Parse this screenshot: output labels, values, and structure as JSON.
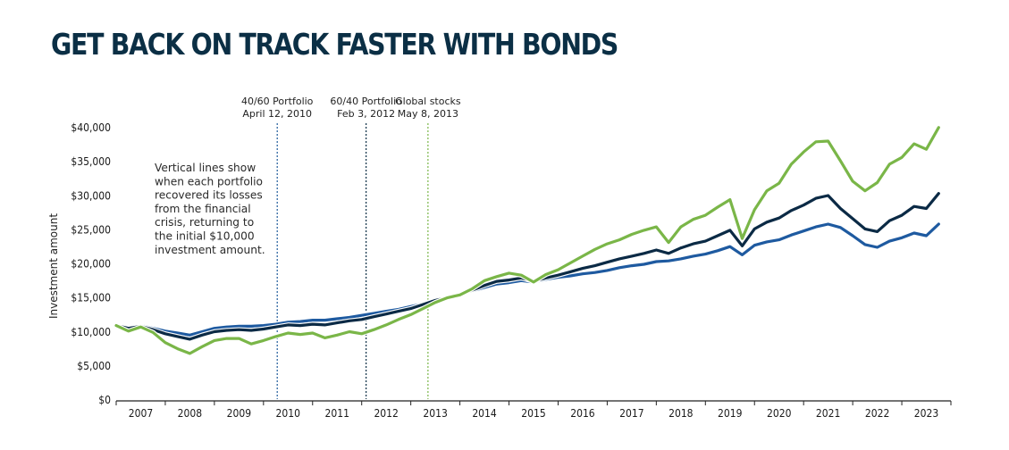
{
  "chart_data": {
    "type": "line",
    "title": "GET BACK ON TRACK FASTER WITH BONDS",
    "xlabel": "",
    "ylabel": "Investment amount",
    "ylim": [
      0,
      40000
    ],
    "xlim": [
      2007.0,
      2024.0
    ],
    "y_ticks": [
      0,
      5000,
      10000,
      15000,
      20000,
      25000,
      30000,
      35000,
      40000
    ],
    "y_tick_labels": [
      "$0",
      "$5,000",
      "$10,000",
      "$15,000",
      "$20,000",
      "$25,000",
      "$30,000",
      "$35,000",
      "$40,000"
    ],
    "x_tick_labels": [
      "2007",
      "2008",
      "2009",
      "2010",
      "2011",
      "2012",
      "2013",
      "2014",
      "2015",
      "2016",
      "2017",
      "2018",
      "2019",
      "2020",
      "2021",
      "2022",
      "2023"
    ],
    "grid": false,
    "legend": "none",
    "note": "Vertical lines show when each portfolio recovered its losses from the financial crisis, returning to the initial $10,000 investment amount.",
    "note_lines": [
      "Vertical lines show",
      "when each portfolio",
      "recovered its losses",
      "from the financial",
      "crisis, returning to",
      "the initial $10,000",
      "investment amount."
    ],
    "markers": [
      {
        "label_line1": "40/60 Portfolio",
        "label_line2": "April 12, 2010",
        "x": 2010.28,
        "color": "#1f5a9a"
      },
      {
        "label_line1": "60/40 Portfolio",
        "label_line2": "Feb 3, 2012",
        "x": 2012.09,
        "color": "#0b2f45"
      },
      {
        "label_line1": "Global stocks",
        "label_line2": "May 8, 2013",
        "x": 2013.35,
        "color": "#7ab648"
      }
    ],
    "series": [
      {
        "name": "40/60 Portfolio",
        "color": "#1e5aa0",
        "x": [
          2007.0,
          2007.25,
          2007.5,
          2007.75,
          2008.0,
          2008.25,
          2008.5,
          2008.75,
          2009.0,
          2009.25,
          2009.5,
          2009.75,
          2010.0,
          2010.25,
          2010.5,
          2010.75,
          2011.0,
          2011.25,
          2011.5,
          2011.75,
          2012.0,
          2012.25,
          2012.5,
          2012.75,
          2013.0,
          2013.25,
          2013.5,
          2013.75,
          2014.0,
          2014.25,
          2014.5,
          2014.75,
          2015.0,
          2015.25,
          2015.5,
          2015.75,
          2016.0,
          2016.25,
          2016.5,
          2016.75,
          2017.0,
          2017.25,
          2017.5,
          2017.75,
          2018.0,
          2018.25,
          2018.5,
          2018.75,
          2019.0,
          2019.25,
          2019.5,
          2019.75,
          2020.0,
          2020.25,
          2020.5,
          2020.75,
          2021.0,
          2021.25,
          2021.5,
          2021.75,
          2022.0,
          2022.25,
          2022.5,
          2022.75,
          2023.0,
          2023.25,
          2023.5,
          2023.75
        ],
        "values": [
          10800,
          10500,
          10800,
          10400,
          10000,
          9700,
          9400,
          9900,
          10400,
          10600,
          10700,
          10700,
          10800,
          11000,
          11300,
          11400,
          11600,
          11600,
          11800,
          12000,
          12300,
          12600,
          12900,
          13200,
          13600,
          14000,
          14600,
          14900,
          15300,
          15900,
          16400,
          16900,
          17100,
          17400,
          17200,
          17600,
          17900,
          18100,
          18400,
          18600,
          18900,
          19300,
          19600,
          19800,
          20200,
          20300,
          20600,
          21000,
          21300,
          21800,
          22400,
          21200,
          22600,
          23100,
          23400,
          24100,
          24700,
          25300,
          25700,
          25200,
          24000,
          22700,
          22300,
          23200,
          23700,
          24400,
          24000,
          25700
        ]
      },
      {
        "name": "60/40 Portfolio",
        "color": "#0b2a45",
        "x": [
          2007.0,
          2007.25,
          2007.5,
          2007.75,
          2008.0,
          2008.25,
          2008.5,
          2008.75,
          2009.0,
          2009.25,
          2009.5,
          2009.75,
          2010.0,
          2010.25,
          2010.5,
          2010.75,
          2011.0,
          2011.25,
          2011.5,
          2011.75,
          2012.0,
          2012.25,
          2012.5,
          2012.75,
          2013.0,
          2013.25,
          2013.5,
          2013.75,
          2014.0,
          2014.25,
          2014.5,
          2014.75,
          2015.0,
          2015.25,
          2015.5,
          2015.75,
          2016.0,
          2016.25,
          2016.5,
          2016.75,
          2017.0,
          2017.25,
          2017.5,
          2017.75,
          2018.0,
          2018.25,
          2018.5,
          2018.75,
          2019.0,
          2019.25,
          2019.5,
          2019.75,
          2020.0,
          2020.25,
          2020.5,
          2020.75,
          2021.0,
          2021.25,
          2021.5,
          2021.75,
          2022.0,
          2022.25,
          2022.5,
          2022.75,
          2023.0,
          2023.25,
          2023.5,
          2023.75
        ],
        "values": [
          10800,
          10400,
          10700,
          10200,
          9600,
          9200,
          8800,
          9400,
          9900,
          10100,
          10200,
          10100,
          10300,
          10600,
          10900,
          10800,
          11000,
          10900,
          11200,
          11500,
          11700,
          12100,
          12500,
          12900,
          13300,
          13900,
          14500,
          14900,
          15300,
          16000,
          16700,
          17300,
          17500,
          17800,
          17300,
          17800,
          18200,
          18700,
          19200,
          19600,
          20100,
          20600,
          21000,
          21400,
          21900,
          21400,
          22200,
          22800,
          23200,
          24000,
          24800,
          22500,
          25000,
          26000,
          26600,
          27700,
          28500,
          29500,
          29900,
          28000,
          26500,
          25000,
          24600,
          26200,
          27000,
          28300,
          28000,
          30200
        ]
      },
      {
        "name": "Global stocks",
        "color": "#7ab648",
        "x": [
          2007.0,
          2007.25,
          2007.5,
          2007.75,
          2008.0,
          2008.25,
          2008.5,
          2008.75,
          2009.0,
          2009.25,
          2009.5,
          2009.75,
          2010.0,
          2010.25,
          2010.5,
          2010.75,
          2011.0,
          2011.25,
          2011.5,
          2011.75,
          2012.0,
          2012.25,
          2012.5,
          2012.75,
          2013.0,
          2013.25,
          2013.5,
          2013.75,
          2014.0,
          2014.25,
          2014.5,
          2014.75,
          2015.0,
          2015.25,
          2015.5,
          2015.75,
          2016.0,
          2016.25,
          2016.5,
          2016.75,
          2017.0,
          2017.25,
          2017.5,
          2017.75,
          2018.0,
          2018.25,
          2018.5,
          2018.75,
          2019.0,
          2019.25,
          2019.5,
          2019.75,
          2020.0,
          2020.25,
          2020.5,
          2020.75,
          2021.0,
          2021.25,
          2021.5,
          2021.75,
          2022.0,
          2022.25,
          2022.5,
          2022.75,
          2023.0,
          2023.25,
          2023.5,
          2023.75
        ],
        "values": [
          10800,
          10000,
          10600,
          9800,
          8300,
          7400,
          6700,
          7700,
          8600,
          8900,
          8900,
          8100,
          8600,
          9200,
          9700,
          9500,
          9700,
          9000,
          9400,
          9900,
          9600,
          10200,
          10900,
          11700,
          12400,
          13300,
          14200,
          14900,
          15300,
          16200,
          17400,
          18000,
          18500,
          18200,
          17200,
          18300,
          19000,
          20000,
          21000,
          22000,
          22800,
          23400,
          24200,
          24800,
          25300,
          23000,
          25300,
          26400,
          27000,
          28200,
          29300,
          23600,
          27800,
          30600,
          31700,
          34500,
          36300,
          37800,
          37900,
          35000,
          32000,
          30600,
          31800,
          34500,
          35500,
          37500,
          36700,
          39900
        ]
      }
    ]
  }
}
